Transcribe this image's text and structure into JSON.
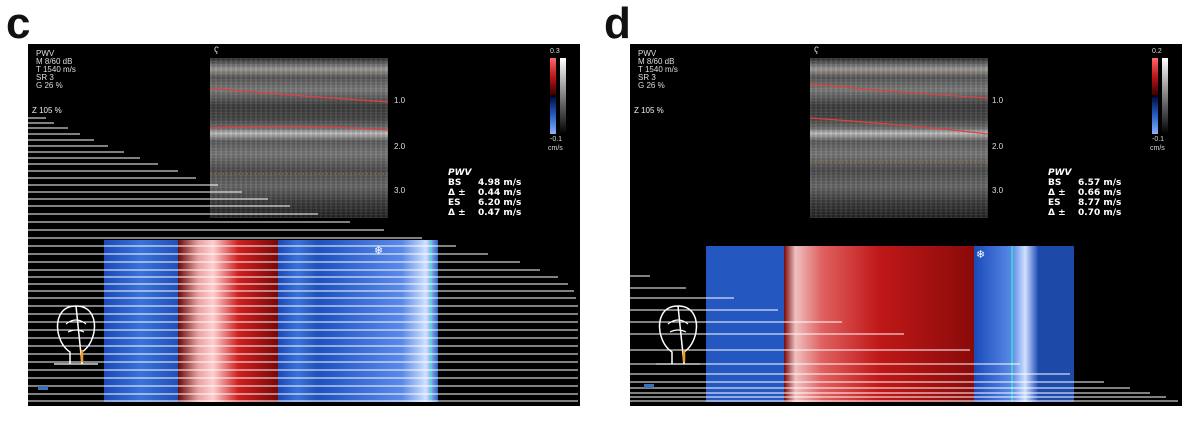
{
  "panels": [
    {
      "letter": "c",
      "stats": [
        "PWV",
        "M 8/60 dB",
        "T 1540 m/s",
        "SR 3",
        "G 26 %"
      ],
      "zoom": "Z 105 %",
      "depth_ticks": [
        "1.0",
        "2.0",
        "3.0"
      ],
      "colorbar": {
        "top": "0.3",
        "bottom": "-0.1",
        "unit": "cm/s"
      },
      "pwv": {
        "title": "PWV",
        "rows": [
          {
            "key": "BS",
            "value": "4.98 m/s"
          },
          {
            "key": "Δ ±",
            "value": "0.44 m/s"
          },
          {
            "key": "ES",
            "value": "6.20 m/s"
          },
          {
            "key": "Δ ±",
            "value": "0.47 m/s"
          }
        ]
      },
      "colors": {
        "blue": "#2a5fc4",
        "red": "#c0161a",
        "trace": "#e04040"
      }
    },
    {
      "letter": "d",
      "stats": [
        "PWV",
        "M 8/60 dB",
        "T 1540 m/s",
        "SR 3",
        "G 26 %"
      ],
      "zoom": "Z 105 %",
      "depth_ticks": [
        "1.0",
        "2.0",
        "3.0"
      ],
      "colorbar": {
        "top": "0.2",
        "bottom": "-0.1",
        "unit": "cm/s"
      },
      "pwv": {
        "title": "PWV",
        "rows": [
          {
            "key": "BS",
            "value": "6.57 m/s"
          },
          {
            "key": "Δ ±",
            "value": "0.66 m/s"
          },
          {
            "key": "ES",
            "value": "8.77 m/s"
          },
          {
            "key": "Δ ±",
            "value": "0.70 m/s"
          }
        ]
      },
      "colors": {
        "blue": "#2a5fc4",
        "red": "#c0161a",
        "trace": "#e04040"
      }
    }
  ]
}
